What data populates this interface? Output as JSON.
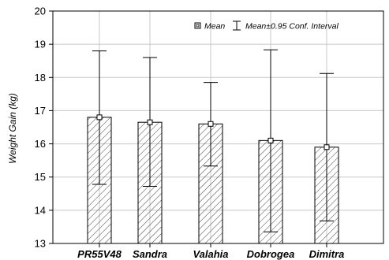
{
  "chart_data": {
    "type": "bar",
    "categories": [
      "PR55V48",
      "Sandra",
      "Valahia",
      "Dobrogea",
      "Dimitra"
    ],
    "series": [
      {
        "name": "Mean",
        "values": [
          16.8,
          16.65,
          16.6,
          16.1,
          15.9
        ]
      }
    ],
    "error_bars": {
      "name": "Mean±0.95 Conf. Interval",
      "lower": [
        14.78,
        14.72,
        15.33,
        13.35,
        13.68
      ],
      "upper": [
        18.8,
        18.6,
        17.85,
        18.83,
        18.12
      ]
    },
    "ylabel": "Weight Gain (kg)",
    "xlabel": "",
    "title": "",
    "ylim": [
      13,
      20
    ],
    "yticks": [
      13,
      14,
      15,
      16,
      17,
      18,
      19,
      20
    ],
    "grid": true,
    "legend_position": "top-right",
    "bar_fill": "hatched",
    "colors": {
      "axis": "#000000",
      "grid": "#c8c8c8",
      "bar_border": "#000000",
      "hatch": "#444444"
    }
  }
}
